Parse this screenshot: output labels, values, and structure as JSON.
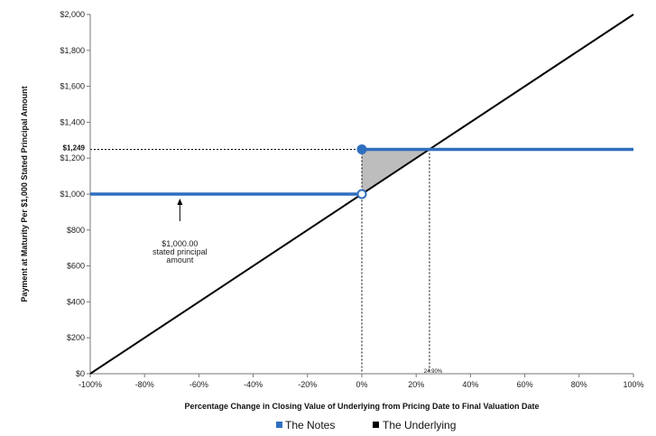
{
  "chart_data": {
    "type": "line",
    "x_axis": {
      "label": "Percentage Change in Closing Value of Underlying from Pricing Date to Final Valuation Date",
      "range": [
        -100,
        100
      ],
      "ticks": [
        -100,
        -80,
        -60,
        -40,
        -20,
        0,
        20,
        40,
        60,
        80,
        100
      ],
      "tick_labels": [
        "-100%",
        "-80%",
        "-60%",
        "-40%",
        "-20%",
        "0%",
        "20%",
        "40%",
        "60%",
        "80%",
        "100%"
      ]
    },
    "y_axis": {
      "label": "Payment at Maturity  Per $1,000 Stated Principal Amount",
      "range": [
        0,
        2000
      ],
      "ticks": [
        0,
        200,
        400,
        600,
        800,
        1000,
        1200,
        1400,
        1600,
        1800,
        2000
      ],
      "tick_labels": [
        "$0",
        "$200",
        "$400",
        "$600",
        "$800",
        "$1,000",
        "$1,200",
        "$1,400",
        "$1,600",
        "$1,800",
        "$2,000"
      ]
    },
    "series": [
      {
        "name": "The Notes",
        "color": "#2f6fbf",
        "segments": [
          {
            "x": [
              -100,
              0
            ],
            "y": [
              1000,
              1000
            ]
          },
          {
            "x": [
              0,
              100
            ],
            "y": [
              1249,
              1249
            ]
          }
        ],
        "markers": [
          {
            "x": 0,
            "y": 1249,
            "style": "filled"
          },
          {
            "x": 0,
            "y": 1000,
            "style": "open"
          }
        ]
      },
      {
        "name": "The Underlying",
        "color": "#000000",
        "x": [
          -100,
          100
        ],
        "y": [
          0,
          2000
        ]
      }
    ],
    "annotations": {
      "cap_label": "$1,249",
      "cap_value": 1249,
      "breakeven_label": "24.90%",
      "breakeven_x": 24.9,
      "principal_note": [
        "$1,000.00",
        "stated principal",
        "amount"
      ],
      "principal_note_arrow_x": -67
    },
    "shaded_region": {
      "color": "#bdbdbd"
    },
    "legend": {
      "placement": "bottom-center"
    },
    "grid": false
  }
}
